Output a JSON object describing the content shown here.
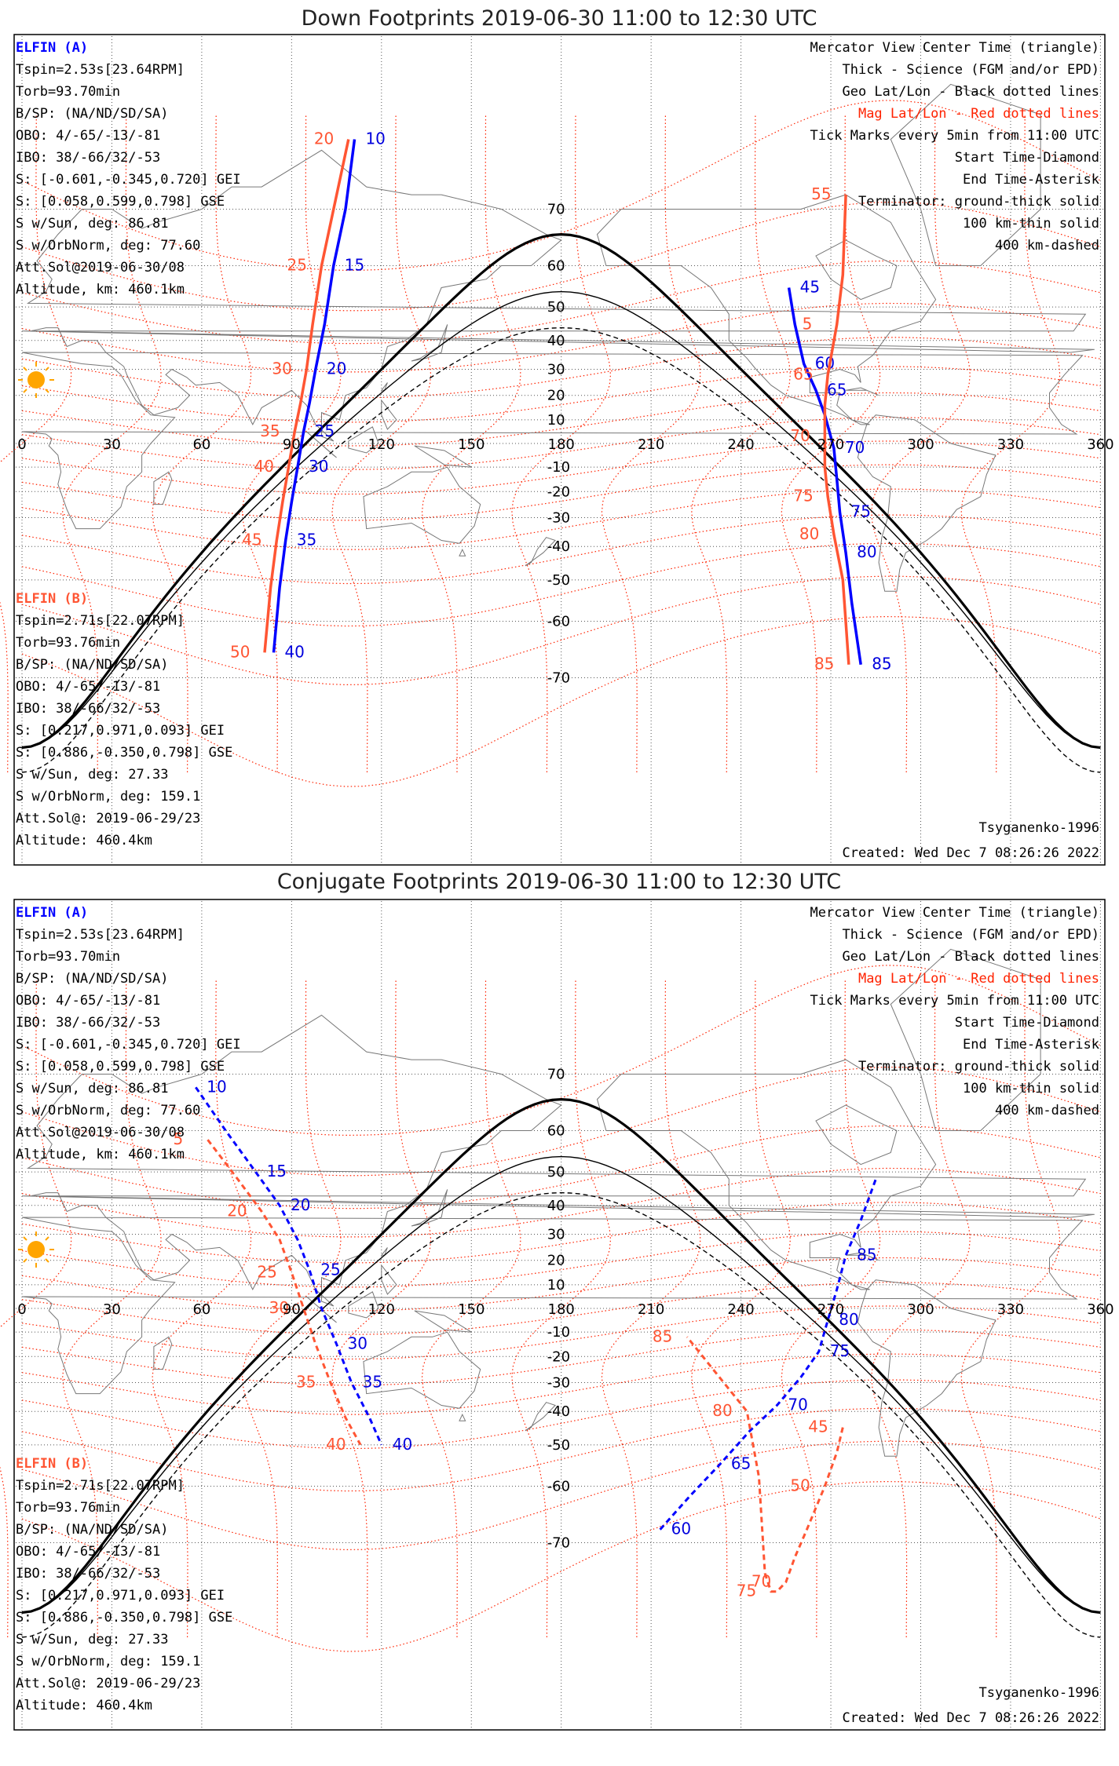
{
  "colors": {
    "elfin_a": "#0000ff",
    "elfin_b": "#ff5533",
    "mag_grid": "#ff2200",
    "geo_grid": "#000000",
    "sun": "#ffa500"
  },
  "chart_data": [
    {
      "type": "line",
      "title": "Down Footprints 2019-06-30 11:00 to 12:30 UTC",
      "projection": "Mercator",
      "x_ticks": [
        "0",
        "30",
        "60",
        "90",
        "120",
        "150",
        "180",
        "210",
        "240",
        "270",
        "300",
        "330",
        "360"
      ],
      "y_ticks": [
        "70",
        "60",
        "50",
        "40",
        "30",
        "20",
        "10",
        "-10",
        "-20",
        "-30",
        "-40",
        "-50",
        "-60",
        "-70"
      ],
      "xlim": [
        0,
        360
      ],
      "ylim": [
        -80,
        80
      ],
      "grid": true,
      "legend_placement": "top-right",
      "legend_lines": [
        "Mercator View Center Time (triangle)",
        "Thick - Science (FGM and/or EPD)",
        "Geo Lat/Lon - Black dotted lines",
        "Mag Lat/Lon - Red dotted lines",
        "Tick Marks every 5min from 11:00 UTC",
        "Start Time-Diamond",
        "End Time-Asterisk",
        "Terminator: ground-thick solid",
        "100 km-thin solid",
        "400 km-dashed"
      ],
      "elfin_a_info": {
        "name": "ELFIN (A)",
        "lines": [
          "Tspin=2.53s[23.64RPM]",
          "Torb=93.70min",
          "B/SP: (NA/ND/SD/SA)",
          "OBO: 4/-65/-13/-81",
          "IBO: 38/-66/32/-53",
          "S: [-0.601,-0.345,0.720] GEI",
          "S: [0.058,0.599,0.798] GSE",
          "S w/Sun, deg: 86.81",
          "S w/OrbNorm, deg: 77.60",
          "Att.Sol@2019-06-30/08",
          "Altitude, km: 460.1km"
        ]
      },
      "elfin_b_info": {
        "name": "ELFIN (B)",
        "lines": [
          "Tspin=2.71s[22.07RPM]",
          "Torb=93.76min",
          "B/SP: (NA/ND/SD/SA)",
          "OBO: 4/-65/-13/-81",
          "IBO: 38/-66/32/-53",
          "S: [0.217,0.971,0.093] GEI",
          "S: [0.886,-0.350,0.798] GSE",
          "S w/Sun, deg: 27.33",
          "S w/OrbNorm, deg: 159.1",
          "Att.Sol@: 2019-06-29/23",
          "Altitude: 460.4km"
        ]
      },
      "footer_left": "",
      "footer_model": "Tsyganenko-1996",
      "footer_created": "Created: Wed Dec  7 08:26:26 2022",
      "series": [
        {
          "name": "ELFIN (A)",
          "segments": [
            {
              "lon": [
                111,
                108,
                104,
                101,
                98,
                96,
                94,
                92,
                90,
                88,
                86,
                84
              ],
              "lat": [
                78,
                70,
                60,
                45,
                30,
                17,
                5,
                -10,
                -24,
                -38,
                -52,
                -66
              ]
            },
            {
              "lon": [
                256,
                258,
                261,
                265,
                268,
                271,
                272,
                273,
                275,
                277,
                280
              ],
              "lat": [
                55,
                45,
                32,
                22,
                12,
                -2,
                -15,
                -28,
                -42,
                -56,
                -68
              ]
            }
          ],
          "tick_labels": [
            "10",
            "15",
            "20",
            "25",
            "30",
            "35",
            "40",
            "45",
            "60",
            "65",
            "70",
            "75",
            "80",
            "85"
          ]
        },
        {
          "name": "ELFIN (B)",
          "segments": [
            {
              "lon": [
                109,
                104,
                100,
                97,
                95,
                93,
                91,
                89,
                87,
                85,
                83,
                81
              ],
              "lat": [
                78,
                70,
                60,
                45,
                30,
                17,
                5,
                -10,
                -24,
                -38,
                -52,
                -66
              ]
            },
            {
              "lon": [
                275,
                274,
                272,
                269,
                268,
                268,
                268,
                269,
                271,
                274,
                276
              ],
              "lat": [
                72,
                58,
                45,
                28,
                16,
                3,
                -10,
                -22,
                -36,
                -50,
                -68
              ]
            }
          ],
          "tick_labels": [
            "20",
            "25",
            "30",
            "35",
            "40",
            "45",
            "50",
            "55",
            "5",
            "65",
            "70",
            "75",
            "80",
            "85"
          ]
        }
      ]
    },
    {
      "type": "line",
      "title": "Conjugate Footprints 2019-06-30 11:00 to 12:30 UTC",
      "projection": "Mercator",
      "x_ticks": [
        "0",
        "30",
        "60",
        "90",
        "120",
        "150",
        "180",
        "210",
        "240",
        "270",
        "300",
        "330",
        "360"
      ],
      "y_ticks": [
        "70",
        "60",
        "50",
        "40",
        "30",
        "20",
        "10",
        "-10",
        "-20",
        "-30",
        "-40",
        "-50",
        "-60",
        "-70"
      ],
      "xlim": [
        0,
        360
      ],
      "ylim": [
        -80,
        80
      ],
      "grid": true,
      "legend_placement": "top-right",
      "footer_model": "Tsyganenko-1996",
      "footer_created": "Created: Wed Dec  7 08:26:26 2022",
      "series": [
        {
          "name": "ELFIN (A)",
          "segments": [
            {
              "lon": [
                58,
                68,
                78,
                86,
                92,
                96,
                100,
                105,
                110,
                116,
                120
              ],
              "lat": [
                68,
                60,
                50,
                40,
                28,
                16,
                0,
                -15,
                -30,
                -42,
                -50
              ]
            },
            {
              "lon": [
                213,
                223,
                233,
                243,
                252,
                260,
                266,
                269,
                272,
                275,
                280,
                285
              ],
              "lat": [
                -68,
                -62,
                -55,
                -46,
                -38,
                -28,
                -18,
                -5,
                8,
                22,
                35,
                48
              ]
            }
          ],
          "tick_labels": [
            "10",
            "15",
            "20",
            "25",
            "30",
            "35",
            "40",
            "60",
            "65",
            "70",
            "75",
            "80",
            "85"
          ]
        },
        {
          "name": "ELFIN (B)",
          "segments": [
            {
              "lon": [
                62,
                72,
                80,
                86,
                90,
                94,
                98,
                103,
                108,
                113
              ],
              "lat": [
                58,
                48,
                38,
                28,
                15,
                0,
                -15,
                -30,
                -42,
                -50
              ]
            },
            {
              "lon": [
                274,
                272,
                268,
                262,
                258,
                255,
                252,
                250,
                248,
                246,
                242,
                230,
                222
              ],
              "lat": [
                -45,
                -52,
                -60,
                -68,
                -72,
                -75,
                -76,
                -76,
                -74,
                -58,
                -40,
                -24,
                -12
              ]
            }
          ],
          "tick_labels": [
            "5",
            "20",
            "25",
            "30",
            "35",
            "40",
            "45",
            "50",
            "70",
            "75",
            "80",
            "85"
          ]
        }
      ]
    }
  ]
}
